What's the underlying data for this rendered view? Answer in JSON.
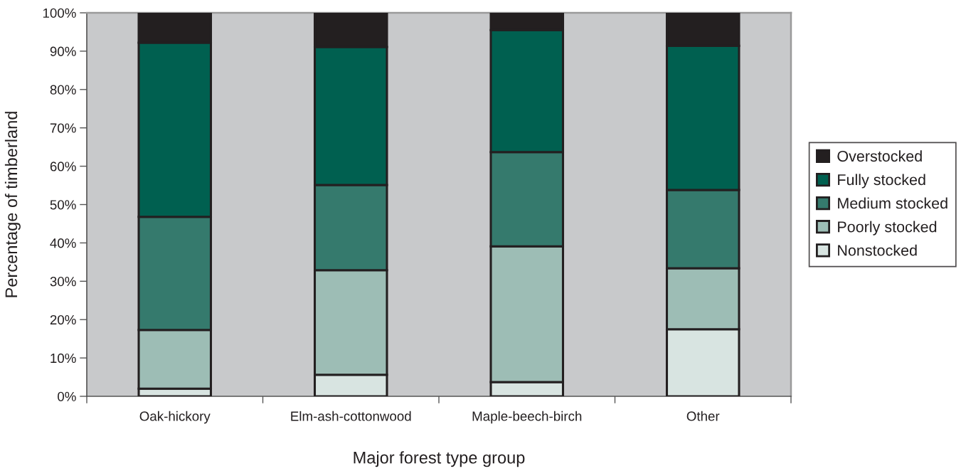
{
  "chart_data": {
    "type": "bar",
    "stacked": true,
    "xlabel": "Major forest type group",
    "ylabel": "Percentage of timberland",
    "categories": [
      "Oak-hickory",
      "Elm-ash-cottonwood",
      "Maple-beech-birch",
      "Other"
    ],
    "series": [
      {
        "name": "Nonstocked",
        "color": "#d8e4e1",
        "values": [
          2.0,
          5.6,
          3.7,
          17.5
        ]
      },
      {
        "name": "Poorly stocked",
        "color": "#9dbdb5",
        "values": [
          15.3,
          27.3,
          35.4,
          15.9
        ]
      },
      {
        "name": "Medium stocked",
        "color": "#357a6d",
        "values": [
          29.5,
          22.2,
          24.6,
          20.4
        ]
      },
      {
        "name": "Fully stocked",
        "color": "#006050",
        "values": [
          45.4,
          36.0,
          31.8,
          37.6
        ]
      },
      {
        "name": "Overstocked",
        "color": "#231f20",
        "values": [
          7.8,
          8.9,
          4.5,
          8.6
        ]
      }
    ],
    "ylim": [
      0,
      100
    ],
    "yticks": [
      {
        "value": 0,
        "label": "0%"
      },
      {
        "value": 10,
        "label": "10%"
      },
      {
        "value": 20,
        "label": "20%"
      },
      {
        "value": 30,
        "label": "30%"
      },
      {
        "value": 40,
        "label": "40%"
      },
      {
        "value": 50,
        "label": "50%"
      },
      {
        "value": 60,
        "label": "60%"
      },
      {
        "value": 70,
        "label": "70%"
      },
      {
        "value": 80,
        "label": "80%"
      },
      {
        "value": 90,
        "label": "90%"
      },
      {
        "value": 100,
        "label": "100%"
      }
    ],
    "grid": false,
    "legend": "right"
  }
}
